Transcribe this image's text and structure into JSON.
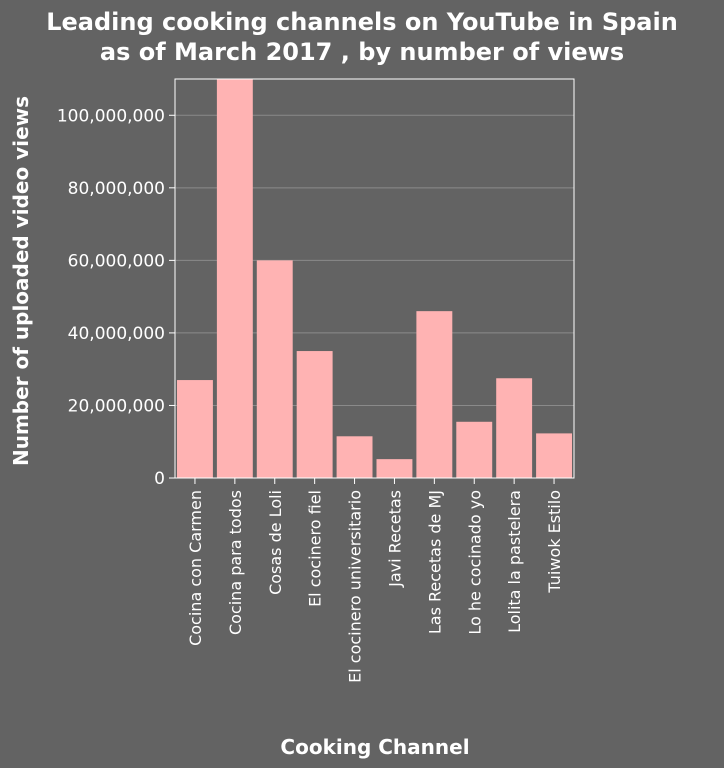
{
  "chart_data": {
    "type": "bar",
    "title_lines": [
      "Leading cooking channels on YouTube in Spain",
      "as of March 2017 , by number of views"
    ],
    "xlabel": "Cooking Channel",
    "ylabel": "Number of uploaded video views",
    "categories": [
      "Cocina con Carmen",
      "Cocina para todos",
      "Cosas de Loli",
      "El cocinero fiel",
      "El cocinero universitario",
      "Javi Recetas",
      "Las Recetas de MJ",
      "Lo he cocinado yo",
      "Lolita la pastelera",
      "Tuiwok Estilo"
    ],
    "values": [
      27000000,
      110000000,
      60000000,
      35000000,
      11500000,
      5200000,
      46000000,
      15500000,
      27500000,
      12300000
    ],
    "ylim": [
      0,
      110000000
    ],
    "yticks": [
      0,
      20000000,
      40000000,
      60000000,
      80000000,
      100000000
    ],
    "ytick_labels": [
      "0",
      "20,000,000",
      "40,000,000",
      "60,000,000",
      "80,000,000",
      "100,000,000"
    ],
    "grid": true,
    "colors": {
      "bar": "#ffb3b3",
      "background": "#636363",
      "grid": "#8a8a8a",
      "axis": "#ffffff"
    }
  }
}
